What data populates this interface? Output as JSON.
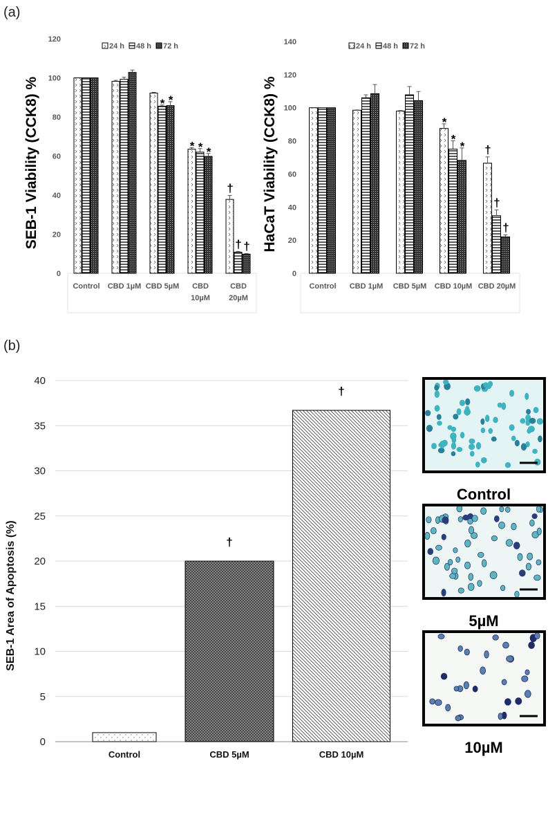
{
  "panel_labels": {
    "a": "(a)",
    "b": "(b)"
  },
  "colors": {
    "bar_stroke": "#000000",
    "grid": "#d9d9d9",
    "axis_text": "#595959",
    "stain_cyan": "#3fb3bf",
    "stain_dark": "#2a3f7a"
  },
  "chart_data": [
    {
      "type": "bar",
      "title": "",
      "ylabel": "SEB-1 Viability (CCK8) %",
      "xlabel": "",
      "ylim": [
        0,
        120
      ],
      "yticks": [
        "0",
        "20",
        "40",
        "60",
        "80",
        "100",
        "120"
      ],
      "legend": {
        "placement": "top",
        "entries": [
          "24 h",
          "48 h",
          "72 h"
        ]
      },
      "categories": [
        "Control",
        "CBD 1µM",
        "CBD 5µM",
        "CBD 10µM",
        "CBD 20µM"
      ],
      "category_lines": [
        [
          "Control"
        ],
        [
          "CBD 1µM"
        ],
        [
          "CBD 5µM"
        ],
        [
          "CBD",
          "10µM"
        ],
        [
          "CBD",
          "20µM"
        ]
      ],
      "series": [
        {
          "name": "24 h",
          "values": [
            100,
            98.2,
            92.2,
            63.5,
            37.8
          ],
          "errors": [
            0,
            0.5,
            0.4,
            0.8,
            2.0
          ],
          "annotations": [
            "",
            "",
            "",
            "*",
            "†"
          ]
        },
        {
          "name": "48 h",
          "values": [
            100,
            99.3,
            85.5,
            62.0,
            10.8
          ],
          "errors": [
            0,
            1.0,
            0.6,
            1.8,
            0.4
          ],
          "annotations": [
            "",
            "",
            "*",
            "*",
            "†"
          ]
        },
        {
          "name": "72 h",
          "values": [
            100,
            102.8,
            85.8,
            59.8,
            9.8
          ],
          "errors": [
            0,
            1.2,
            2.0,
            1.5,
            0.3
          ],
          "annotations": [
            "",
            "",
            "*",
            "*",
            "†"
          ]
        }
      ]
    },
    {
      "type": "bar",
      "title": "",
      "ylabel": "HaCaT  Viability (CCK8) %",
      "xlabel": "",
      "ylim": [
        0,
        140
      ],
      "yticks": [
        "0",
        "20",
        "40",
        "60",
        "80",
        "100",
        "120",
        "140"
      ],
      "legend": {
        "placement": "top",
        "entries": [
          "24 h",
          "48 h",
          "72 h"
        ]
      },
      "categories": [
        "Control",
        "CBD 1µM",
        "CBD 5µM",
        "CBD 10µM",
        "CBD 20µM"
      ],
      "category_lines": [
        [
          "Control"
        ],
        [
          "CBD 1µM"
        ],
        [
          "CBD 5µM"
        ],
        [
          "CBD 10µM"
        ],
        [
          "CBD 20µM"
        ]
      ],
      "series": [
        {
          "name": "24 h",
          "values": [
            100,
            98.5,
            98.0,
            87.5,
            66.5
          ],
          "errors": [
            0,
            0.2,
            0.3,
            2.8,
            3.8
          ],
          "annotations": [
            "",
            "",
            "",
            "*",
            "†"
          ]
        },
        {
          "name": "48 h",
          "values": [
            100,
            106.0,
            107.8,
            75.0,
            34.8
          ],
          "errors": [
            0,
            1.8,
            5.0,
            5.0,
            3.5
          ],
          "annotations": [
            "",
            "",
            "",
            "*",
            "†"
          ]
        },
        {
          "name": "72 h",
          "values": [
            100,
            108.5,
            104.3,
            68.2,
            22.0
          ],
          "errors": [
            0,
            5.5,
            5.5,
            7.5,
            1.2
          ],
          "annotations": [
            "",
            "",
            "",
            "*",
            "†"
          ]
        }
      ]
    },
    {
      "type": "bar",
      "title": "",
      "ylabel": "SEB-1 Area of Apoptosis (%)",
      "xlabel": "",
      "ylim": [
        0,
        40
      ],
      "yticks": [
        "0",
        "5",
        "10",
        "15",
        "20",
        "25",
        "30",
        "35",
        "40"
      ],
      "grid": true,
      "categories": [
        "Control",
        "CBD 5µM",
        "CBD 10µM"
      ],
      "values": [
        1.0,
        20.0,
        36.7
      ],
      "annotations": [
        "",
        "†",
        "†"
      ]
    }
  ],
  "micrographs": [
    {
      "label": "Control"
    },
    {
      "label": "5µM"
    },
    {
      "label": "10µM"
    }
  ]
}
